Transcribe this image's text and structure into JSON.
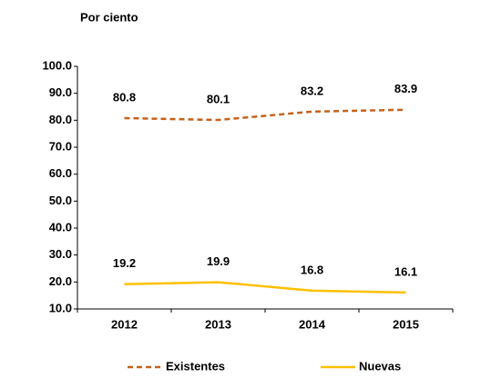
{
  "chart_data": {
    "type": "line",
    "y_label": "Por ciento",
    "categories": [
      "2012",
      "2013",
      "2014",
      "2015"
    ],
    "series": [
      {
        "name": "Existentes",
        "color": "#c5621a",
        "dashed": true,
        "values": [
          80.8,
          80.1,
          83.2,
          83.9
        ]
      },
      {
        "name": "Nuevas",
        "color": "#ffc000",
        "dashed": false,
        "values": [
          19.2,
          19.9,
          16.8,
          16.1
        ]
      }
    ],
    "ylim": [
      10,
      100
    ],
    "yticks": [
      {
        "value": 10,
        "label": "10.0"
      },
      {
        "value": 20,
        "label": "20.0"
      },
      {
        "value": 30,
        "label": "30.0"
      },
      {
        "value": 40,
        "label": "40.0"
      },
      {
        "value": 50,
        "label": "50.0"
      },
      {
        "value": 60,
        "label": "60.0"
      },
      {
        "value": 70,
        "label": "70.0"
      },
      {
        "value": 80,
        "label": "80.0"
      },
      {
        "value": 90,
        "label": "90.0"
      },
      {
        "value": 100,
        "label": "100.0"
      }
    ],
    "grid": false,
    "legend": "bottom"
  }
}
